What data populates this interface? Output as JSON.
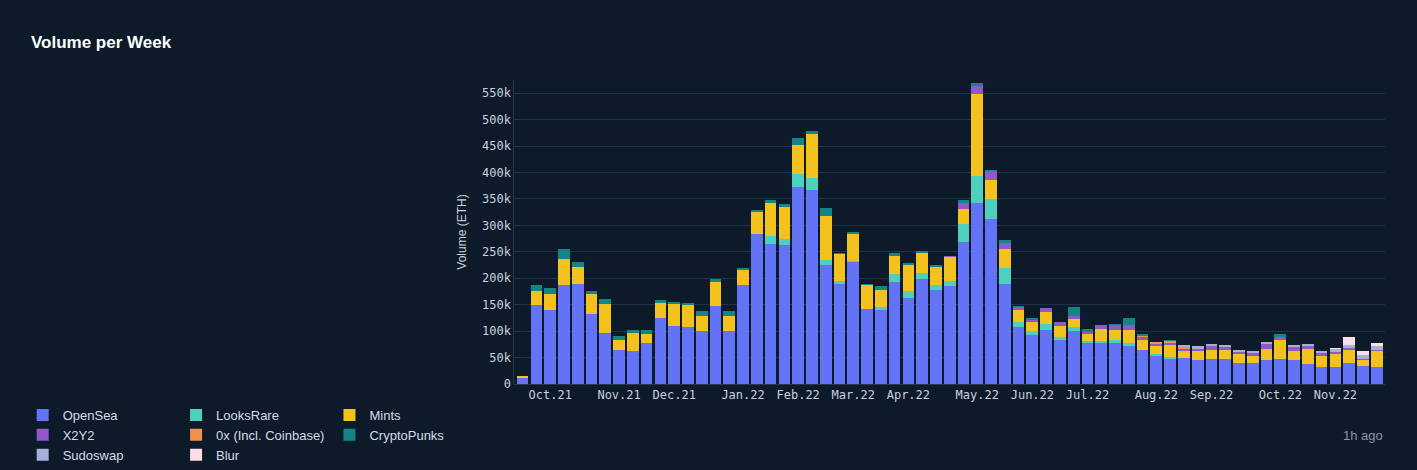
{
  "chart_data": {
    "type": "bar",
    "title": "Volume per Week",
    "y_label": "Volume (ETH)",
    "annotation": "1h ago",
    "stacked": true,
    "grid": true,
    "legend": "bottom left",
    "categories": [
      null,
      null,
      "Oct.21",
      null,
      null,
      null,
      null,
      "Nov.21",
      null,
      null,
      null,
      "Dec.21",
      null,
      null,
      null,
      null,
      "Jan.22",
      null,
      null,
      null,
      "Feb.22",
      null,
      null,
      null,
      "Mar.22",
      null,
      null,
      null,
      "Apr.22",
      null,
      null,
      null,
      null,
      "May.22",
      null,
      null,
      null,
      "Jun.22",
      null,
      null,
      null,
      "Jul.22",
      null,
      null,
      null,
      null,
      "Aug.22",
      null,
      null,
      null,
      "Sep.22",
      null,
      null,
      null,
      null,
      "Oct.22",
      null,
      null,
      null,
      "Nov.22",
      null,
      null,
      null
    ],
    "ylim": [
      0,
      575000
    ],
    "yticks": [
      0,
      {
        "value": 50000,
        "label": "50k"
      },
      {
        "value": 100000,
        "label": "100k"
      },
      {
        "value": 150000,
        "label": "150k"
      },
      {
        "value": 200000,
        "label": "200k"
      },
      {
        "value": 250000,
        "label": "250k"
      },
      {
        "value": 300000,
        "label": "300k"
      },
      {
        "value": 350000,
        "label": "350k"
      },
      {
        "value": 400000,
        "label": "400k"
      },
      {
        "value": 450000,
        "label": "450k"
      },
      {
        "value": 500000,
        "label": "500k"
      },
      {
        "value": 550000,
        "label": "550k"
      }
    ],
    "series": [
      {
        "name": "OpenSea",
        "color": "#6373f5",
        "values": [
          12000,
          150000,
          140000,
          187000,
          190000,
          133000,
          97000,
          65000,
          62000,
          77000,
          125000,
          110000,
          107000,
          100000,
          148000,
          100000,
          188000,
          283000,
          265000,
          262000,
          373000,
          367000,
          225000,
          190000,
          230000,
          142000,
          140000,
          192000,
          162000,
          198000,
          177000,
          185000,
          268000,
          342000,
          312000,
          190000,
          108000,
          92000,
          103000,
          83000,
          100000,
          77000,
          77000,
          78000,
          72000,
          65000,
          53000,
          48000,
          50000,
          45000,
          48000,
          47000,
          40000,
          40000,
          45000,
          47000,
          45000,
          38000,
          33000,
          33000,
          40000,
          35000,
          32000
        ]
      },
      {
        "name": "LooksRare",
        "color": "#4dd0bd",
        "values": [
          0,
          0,
          0,
          0,
          0,
          0,
          0,
          0,
          0,
          0,
          0,
          0,
          0,
          0,
          0,
          0,
          0,
          0,
          15000,
          12000,
          25000,
          22000,
          10000,
          5000,
          3000,
          0,
          5000,
          16000,
          13000,
          12000,
          10000,
          10000,
          35000,
          52000,
          37000,
          30000,
          10000,
          8000,
          10000,
          5000,
          8000,
          5000,
          5000,
          5000,
          5000,
          0,
          3000,
          3000,
          0,
          0,
          0,
          0,
          0,
          0,
          0,
          0,
          0,
          0,
          0,
          0,
          0,
          0,
          0
        ]
      },
      {
        "name": "Mints",
        "color": "#f4c21f",
        "values": [
          3000,
          25000,
          30000,
          50000,
          32000,
          38000,
          55000,
          18000,
          35000,
          18000,
          28000,
          42000,
          43000,
          28000,
          45000,
          28000,
          27000,
          42000,
          63000,
          60000,
          55000,
          83000,
          82000,
          50000,
          50000,
          45000,
          33000,
          35000,
          50000,
          37000,
          35000,
          45000,
          28000,
          155000,
          37000,
          35000,
          22000,
          17000,
          23000,
          22000,
          15000,
          12000,
          22000,
          20000,
          25000,
          18000,
          15000,
          22000,
          12000,
          17000,
          17000,
          18000,
          17000,
          13000,
          22000,
          37000,
          17000,
          28000,
          20000,
          23000,
          25000,
          10000,
          30000
        ]
      },
      {
        "name": "X2Y2",
        "color": "#9258c9",
        "values": [
          0,
          0,
          0,
          0,
          0,
          0,
          0,
          0,
          0,
          0,
          0,
          0,
          0,
          0,
          0,
          0,
          0,
          0,
          0,
          0,
          0,
          0,
          0,
          0,
          0,
          0,
          0,
          0,
          0,
          0,
          0,
          3000,
          12000,
          15000,
          17000,
          12000,
          5000,
          5000,
          8000,
          8000,
          5000,
          5000,
          8000,
          8000,
          10000,
          5000,
          5000,
          5000,
          5000,
          5000,
          6000,
          5000,
          4000,
          5000,
          8000,
          5000,
          8000,
          5000,
          5000,
          5000,
          3000,
          3000,
          3000
        ]
      },
      {
        "name": "0x (Incl. Coinbase)",
        "color": "#f0924c",
        "values": [
          0,
          0,
          0,
          0,
          0,
          0,
          0,
          0,
          0,
          0,
          0,
          0,
          0,
          0,
          0,
          0,
          0,
          0,
          0,
          0,
          0,
          0,
          0,
          0,
          0,
          0,
          0,
          0,
          0,
          0,
          0,
          0,
          0,
          0,
          0,
          0,
          0,
          0,
          0,
          0,
          0,
          0,
          0,
          0,
          0,
          3000,
          3000,
          3000,
          3000,
          0,
          0,
          0,
          0,
          0,
          0,
          0,
          0,
          0,
          0,
          0,
          0,
          0,
          0
        ]
      },
      {
        "name": "CryptoPunks",
        "color": "#138586",
        "values": [
          0,
          13000,
          12000,
          18000,
          8000,
          4000,
          8000,
          8000,
          5000,
          8000,
          5000,
          4000,
          4000,
          10000,
          5000,
          10000,
          5000,
          5000,
          5000,
          6000,
          13000,
          6000,
          15000,
          3000,
          5000,
          3000,
          8000,
          5000,
          3000,
          5000,
          3000,
          0,
          5000,
          5000,
          2000,
          5000,
          3000,
          3000,
          0,
          0,
          17000,
          5000,
          0,
          3000,
          13000,
          4000,
          0,
          3000,
          0,
          0,
          0,
          0,
          0,
          0,
          0,
          5000,
          0,
          0,
          0,
          0,
          0,
          0,
          0
        ]
      },
      {
        "name": "Sudoswap",
        "color": "#a2b2d6",
        "values": [
          0,
          0,
          0,
          0,
          0,
          0,
          0,
          0,
          0,
          0,
          0,
          0,
          0,
          0,
          0,
          0,
          0,
          0,
          0,
          0,
          0,
          0,
          0,
          0,
          0,
          0,
          0,
          0,
          0,
          0,
          0,
          0,
          0,
          0,
          0,
          0,
          0,
          0,
          0,
          0,
          0,
          0,
          0,
          0,
          0,
          0,
          0,
          0,
          4000,
          5000,
          5000,
          4000,
          3000,
          4000,
          4000,
          0,
          3000,
          5000,
          5000,
          5000,
          5000,
          7000,
          7000
        ]
      },
      {
        "name": "Blur",
        "color": "#fcdde6",
        "values": [
          0,
          0,
          0,
          0,
          0,
          0,
          0,
          0,
          0,
          0,
          0,
          0,
          0,
          0,
          0,
          0,
          0,
          0,
          0,
          0,
          0,
          0,
          0,
          0,
          0,
          0,
          0,
          0,
          0,
          0,
          0,
          0,
          0,
          0,
          0,
          0,
          0,
          0,
          0,
          0,
          0,
          0,
          0,
          0,
          0,
          0,
          0,
          0,
          0,
          0,
          0,
          0,
          0,
          0,
          0,
          0,
          0,
          0,
          0,
          3000,
          15000,
          7000,
          6000
        ]
      }
    ]
  }
}
